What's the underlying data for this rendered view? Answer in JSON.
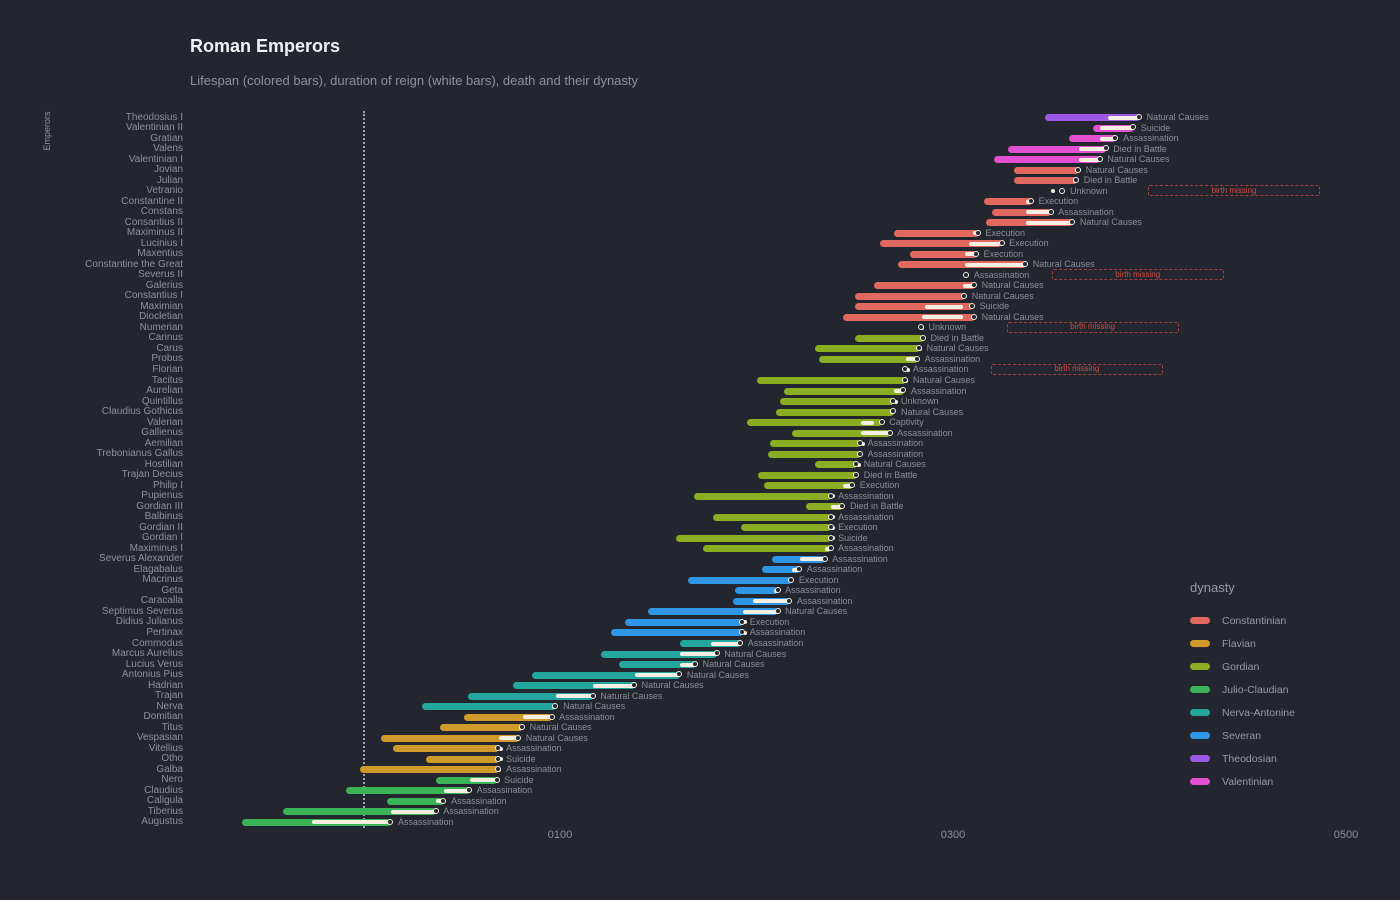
{
  "chart_data": {
    "type": "timeline",
    "title": "Roman Emperors",
    "subtitle": "Lifespan (colored bars), duration of reign (white bars), death and their dynasty",
    "y_axis_label": "Emperors",
    "annotation_label": "birth missing",
    "reign_bar_color": "#f5efe3",
    "background_color": "#23262f",
    "x_axis": {
      "unit": "year",
      "xlim": [
        -75,
        520
      ],
      "zero_gridline_year": 0,
      "ticks": [
        {
          "value": 100,
          "label": "0100"
        },
        {
          "value": 300,
          "label": "0300"
        },
        {
          "value": 500,
          "label": "0500"
        }
      ]
    },
    "legend": {
      "title": "dynasty",
      "items": [
        {
          "name": "Constantinian",
          "color": "#e0685e"
        },
        {
          "name": "Flavian",
          "color": "#cf9a2a"
        },
        {
          "name": "Gordian",
          "color": "#8aad21"
        },
        {
          "name": "Julio-Claudian",
          "color": "#3ab456"
        },
        {
          "name": "Nerva-Antonine",
          "color": "#23a69b"
        },
        {
          "name": "Severan",
          "color": "#2e96e5"
        },
        {
          "name": "Theodosian",
          "color": "#9c59e8"
        },
        {
          "name": "Valentinian",
          "color": "#e24fd0"
        }
      ]
    },
    "emperors": [
      {
        "name": "Theodosius I",
        "dynasty": "Theodosian",
        "birth": 347,
        "death": 395,
        "reign_start": 379,
        "reign_end": 395,
        "cause": "Natural Causes"
      },
      {
        "name": "Valentinian II",
        "dynasty": "Valentinian",
        "birth": 371,
        "death": 392,
        "reign_start": 375,
        "reign_end": 392,
        "cause": "Suicide"
      },
      {
        "name": "Gratian",
        "dynasty": "Valentinian",
        "birth": 359,
        "death": 383,
        "reign_start": 375,
        "reign_end": 383,
        "cause": "Assassination"
      },
      {
        "name": "Valens",
        "dynasty": "Valentinian",
        "birth": 328,
        "death": 378,
        "reign_start": 364,
        "reign_end": 378,
        "cause": "Died in Battle"
      },
      {
        "name": "Valentinian I",
        "dynasty": "Valentinian",
        "birth": 321,
        "death": 375,
        "reign_start": 364,
        "reign_end": 375,
        "cause": "Natural Causes"
      },
      {
        "name": "Jovian",
        "dynasty": "Constantinian",
        "birth": 331,
        "death": 364,
        "reign_start": 363,
        "reign_end": 364,
        "cause": "Natural Causes"
      },
      {
        "name": "Julian",
        "dynasty": "Constantinian",
        "birth": 331,
        "death": 363,
        "reign_start": 361,
        "reign_end": 363,
        "cause": "Died in Battle"
      },
      {
        "name": "Vetranio",
        "dynasty": "Constantinian",
        "birth": null,
        "birth_missing": true,
        "death": 356,
        "reign_start": 350,
        "reign_end": 351,
        "cause": "Unknown"
      },
      {
        "name": "Constantine II",
        "dynasty": "Constantinian",
        "birth": 316,
        "death": 340,
        "reign_start": 337,
        "reign_end": 340,
        "cause": "Execution"
      },
      {
        "name": "Constans",
        "dynasty": "Constantinian",
        "birth": 320,
        "death": 350,
        "reign_start": 337,
        "reign_end": 350,
        "cause": "Assassination"
      },
      {
        "name": "Consantius II",
        "dynasty": "Constantinian",
        "birth": 317,
        "death": 361,
        "reign_start": 337,
        "reign_end": 361,
        "cause": "Natural Causes"
      },
      {
        "name": "Maximinus II",
        "dynasty": "Constantinian",
        "birth": 270,
        "death": 313,
        "reign_start": 310,
        "reign_end": 313,
        "cause": "Execution"
      },
      {
        "name": "Lucinius I",
        "dynasty": "Constantinian",
        "birth": 263,
        "death": 325,
        "reign_start": 308,
        "reign_end": 324,
        "cause": "Execution"
      },
      {
        "name": "Maxentius",
        "dynasty": "Constantinian",
        "birth": 278,
        "death": 312,
        "reign_start": 306,
        "reign_end": 312,
        "cause": "Execution"
      },
      {
        "name": "Constantine the Great",
        "dynasty": "Constantinian",
        "birth": 272,
        "death": 337,
        "reign_start": 306,
        "reign_end": 337,
        "cause": "Natural Causes"
      },
      {
        "name": "Severus II",
        "dynasty": "Constantinian",
        "birth": null,
        "birth_missing": true,
        "death": 307,
        "reign_start": 306,
        "reign_end": 307,
        "cause": "Assassination"
      },
      {
        "name": "Galerius",
        "dynasty": "Constantinian",
        "birth": 260,
        "death": 311,
        "reign_start": 305,
        "reign_end": 311,
        "cause": "Natural Causes"
      },
      {
        "name": "Constantius I",
        "dynasty": "Constantinian",
        "birth": 250,
        "death": 306,
        "reign_start": 305,
        "reign_end": 306,
        "cause": "Natural Causes"
      },
      {
        "name": "Maximian",
        "dynasty": "Constantinian",
        "birth": 250,
        "death": 310,
        "reign_start": 286,
        "reign_end": 305,
        "cause": "Suicide"
      },
      {
        "name": "Diocletian",
        "dynasty": "Constantinian",
        "birth": 244,
        "death": 311,
        "reign_start": 284,
        "reign_end": 305,
        "cause": "Natural Causes"
      },
      {
        "name": "Numerian",
        "dynasty": "Gordian",
        "birth": null,
        "birth_missing": true,
        "death": 284,
        "reign_start": 283,
        "reign_end": 284,
        "cause": "Unknown"
      },
      {
        "name": "Carinus",
        "dynasty": "Gordian",
        "birth": 250,
        "death": 285,
        "reign_start": 283,
        "reign_end": 285,
        "cause": "Died in Battle"
      },
      {
        "name": "Carus",
        "dynasty": "Gordian",
        "birth": 230,
        "death": 283,
        "reign_start": 282,
        "reign_end": 283,
        "cause": "Natural Causes"
      },
      {
        "name": "Probus",
        "dynasty": "Gordian",
        "birth": 232,
        "death": 282,
        "reign_start": 276,
        "reign_end": 282,
        "cause": "Assassination"
      },
      {
        "name": "Florian",
        "dynasty": "Gordian",
        "birth": null,
        "birth_missing": true,
        "death": 276,
        "reign_start": 276,
        "reign_end": 276,
        "cause": "Assassination"
      },
      {
        "name": "Tacitus",
        "dynasty": "Gordian",
        "birth": 200,
        "death": 276,
        "reign_start": 275,
        "reign_end": 276,
        "cause": "Natural Causes"
      },
      {
        "name": "Aurelian",
        "dynasty": "Gordian",
        "birth": 214,
        "death": 275,
        "reign_start": 270,
        "reign_end": 275,
        "cause": "Assassination"
      },
      {
        "name": "Quintillus",
        "dynasty": "Gordian",
        "birth": 212,
        "death": 270,
        "reign_start": 270,
        "reign_end": 270,
        "cause": "Unknown"
      },
      {
        "name": "Claudius Gothicus",
        "dynasty": "Gordian",
        "birth": 210,
        "death": 270,
        "reign_start": 268,
        "reign_end": 270,
        "cause": "Natural Causes"
      },
      {
        "name": "Valerian",
        "dynasty": "Gordian",
        "birth": 195,
        "death": 264,
        "reign_start": 253,
        "reign_end": 260,
        "cause": "Captivity"
      },
      {
        "name": "Gallienus",
        "dynasty": "Gordian",
        "birth": 218,
        "death": 268,
        "reign_start": 253,
        "reign_end": 268,
        "cause": "Assassination"
      },
      {
        "name": "Aemilian",
        "dynasty": "Gordian",
        "birth": 207,
        "death": 253,
        "reign_start": 253,
        "reign_end": 253,
        "cause": "Assassination"
      },
      {
        "name": "Trebonianus Gallus",
        "dynasty": "Gordian",
        "birth": 206,
        "death": 253,
        "reign_start": 251,
        "reign_end": 253,
        "cause": "Assassination"
      },
      {
        "name": "Hostilian",
        "dynasty": "Gordian",
        "birth": 230,
        "death": 251,
        "reign_start": 251,
        "reign_end": 251,
        "cause": "Natural Causes"
      },
      {
        "name": "Trajan Decius",
        "dynasty": "Gordian",
        "birth": 201,
        "death": 251,
        "reign_start": 249,
        "reign_end": 251,
        "cause": "Died in Battle"
      },
      {
        "name": "Philip I",
        "dynasty": "Gordian",
        "birth": 204,
        "death": 249,
        "reign_start": 244,
        "reign_end": 249,
        "cause": "Execution"
      },
      {
        "name": "Pupienus",
        "dynasty": "Gordian",
        "birth": 168,
        "death": 238,
        "reign_start": 238,
        "reign_end": 238,
        "cause": "Assassination"
      },
      {
        "name": "Gordian III",
        "dynasty": "Gordian",
        "birth": 225,
        "death": 244,
        "reign_start": 238,
        "reign_end": 244,
        "cause": "Died in Battle"
      },
      {
        "name": "Balbinus",
        "dynasty": "Gordian",
        "birth": 178,
        "death": 238,
        "reign_start": 238,
        "reign_end": 238,
        "cause": "Assassination"
      },
      {
        "name": "Gordian II",
        "dynasty": "Gordian",
        "birth": 192,
        "death": 238,
        "reign_start": 238,
        "reign_end": 238,
        "cause": "Execution"
      },
      {
        "name": "Gordian I",
        "dynasty": "Gordian",
        "birth": 159,
        "death": 238,
        "reign_start": 238,
        "reign_end": 238,
        "cause": "Suicide"
      },
      {
        "name": "Maximinus I",
        "dynasty": "Gordian",
        "birth": 173,
        "death": 238,
        "reign_start": 235,
        "reign_end": 238,
        "cause": "Assassination"
      },
      {
        "name": "Severus Alexander",
        "dynasty": "Severan",
        "birth": 208,
        "death": 235,
        "reign_start": 222,
        "reign_end": 235,
        "cause": "Assassination"
      },
      {
        "name": "Elagabalus",
        "dynasty": "Severan",
        "birth": 203,
        "death": 222,
        "reign_start": 218,
        "reign_end": 222,
        "cause": "Assassination"
      },
      {
        "name": "Macrinus",
        "dynasty": "Severan",
        "birth": 165,
        "death": 218,
        "reign_start": 217,
        "reign_end": 218,
        "cause": "Execution"
      },
      {
        "name": "Geta",
        "dynasty": "Severan",
        "birth": 189,
        "death": 211,
        "reign_start": 209,
        "reign_end": 211,
        "cause": "Assassination"
      },
      {
        "name": "Caracalla",
        "dynasty": "Severan",
        "birth": 188,
        "death": 217,
        "reign_start": 198,
        "reign_end": 217,
        "cause": "Assassination"
      },
      {
        "name": "Septimus Severus",
        "dynasty": "Severan",
        "birth": 145,
        "death": 211,
        "reign_start": 193,
        "reign_end": 211,
        "cause": "Natural Causes"
      },
      {
        "name": "Didius Julianus",
        "dynasty": "Severan",
        "birth": 133,
        "death": 193,
        "reign_start": 193,
        "reign_end": 193,
        "cause": "Execution"
      },
      {
        "name": "Pertinax",
        "dynasty": "Severan",
        "birth": 126,
        "death": 193,
        "reign_start": 193,
        "reign_end": 193,
        "cause": "Assassination"
      },
      {
        "name": "Commodus",
        "dynasty": "Nerva-Antonine",
        "birth": 161,
        "death": 192,
        "reign_start": 177,
        "reign_end": 192,
        "cause": "Assassination"
      },
      {
        "name": "Marcus Aurelius",
        "dynasty": "Nerva-Antonine",
        "birth": 121,
        "death": 180,
        "reign_start": 161,
        "reign_end": 180,
        "cause": "Natural Causes"
      },
      {
        "name": "Lucius Verus",
        "dynasty": "Nerva-Antonine",
        "birth": 130,
        "death": 169,
        "reign_start": 161,
        "reign_end": 169,
        "cause": "Natural Causes"
      },
      {
        "name": "Antonius Pius",
        "dynasty": "Nerva-Antonine",
        "birth": 86,
        "death": 161,
        "reign_start": 138,
        "reign_end": 161,
        "cause": "Natural Causes"
      },
      {
        "name": "Hadrian",
        "dynasty": "Nerva-Antonine",
        "birth": 76,
        "death": 138,
        "reign_start": 117,
        "reign_end": 138,
        "cause": "Natural Causes"
      },
      {
        "name": "Trajan",
        "dynasty": "Nerva-Antonine",
        "birth": 53,
        "death": 117,
        "reign_start": 98,
        "reign_end": 117,
        "cause": "Natural Causes"
      },
      {
        "name": "Nerva",
        "dynasty": "Nerva-Antonine",
        "birth": 30,
        "death": 98,
        "reign_start": 96,
        "reign_end": 98,
        "cause": "Natural Causes"
      },
      {
        "name": "Domitian",
        "dynasty": "Flavian",
        "birth": 51,
        "death": 96,
        "reign_start": 81,
        "reign_end": 96,
        "cause": "Assassination"
      },
      {
        "name": "Titus",
        "dynasty": "Flavian",
        "birth": 39,
        "death": 81,
        "reign_start": 79,
        "reign_end": 81,
        "cause": "Natural Causes"
      },
      {
        "name": "Vespasian",
        "dynasty": "Flavian",
        "birth": 9,
        "death": 79,
        "reign_start": 69,
        "reign_end": 79,
        "cause": "Natural Causes"
      },
      {
        "name": "Vitellius",
        "dynasty": "Flavian",
        "birth": 15,
        "death": 69,
        "reign_start": 69,
        "reign_end": 69,
        "cause": "Assassination"
      },
      {
        "name": "Otho",
        "dynasty": "Flavian",
        "birth": 32,
        "death": 69,
        "reign_start": 69,
        "reign_end": 69,
        "cause": "Suicide"
      },
      {
        "name": "Galba",
        "dynasty": "Flavian",
        "birth": -2,
        "death": 69,
        "reign_start": 68,
        "reign_end": 69,
        "cause": "Assassination"
      },
      {
        "name": "Nero",
        "dynasty": "Julio-Claudian",
        "birth": 37,
        "death": 68,
        "reign_start": 54,
        "reign_end": 68,
        "cause": "Suicide"
      },
      {
        "name": "Claudius",
        "dynasty": "Julio-Claudian",
        "birth": -9,
        "death": 54,
        "reign_start": 41,
        "reign_end": 54,
        "cause": "Assassination"
      },
      {
        "name": "Caligula",
        "dynasty": "Julio-Claudian",
        "birth": 12,
        "death": 41,
        "reign_start": 37,
        "reign_end": 41,
        "cause": "Assassination"
      },
      {
        "name": "Tiberius",
        "dynasty": "Julio-Claudian",
        "birth": -41,
        "death": 37,
        "reign_start": 14,
        "reign_end": 37,
        "cause": "Assassination"
      },
      {
        "name": "Augustus",
        "dynasty": "Julio-Claudian",
        "birth": -62,
        "death": 14,
        "reign_start": -26,
        "reign_end": 14,
        "cause": "Assassination"
      }
    ]
  }
}
